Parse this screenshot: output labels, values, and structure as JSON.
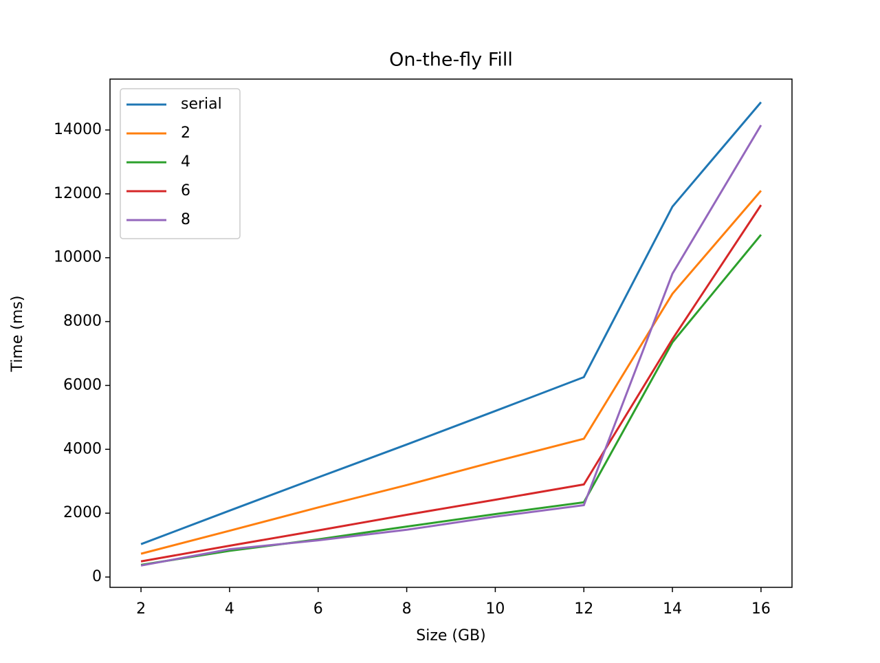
{
  "chart_data": {
    "type": "line",
    "title": "On-the-fly Fill",
    "x_label": "Size (GB)",
    "y_label": "Time (ms)",
    "x": [
      2,
      4,
      6,
      8,
      10,
      12,
      14,
      16
    ],
    "series": [
      {
        "name": "serial",
        "color": "#1f77b4",
        "values": [
          1030,
          2080,
          3120,
          4150,
          5200,
          6260,
          11600,
          14870
        ]
      },
      {
        "name": "2",
        "color": "#ff7f0e",
        "values": [
          730,
          1450,
          2180,
          2880,
          3620,
          4330,
          8870,
          12100
        ]
      },
      {
        "name": "4",
        "color": "#2ca02c",
        "values": [
          380,
          820,
          1180,
          1580,
          1970,
          2340,
          7350,
          10720
        ]
      },
      {
        "name": "6",
        "color": "#d62728",
        "values": [
          490,
          980,
          1460,
          1950,
          2420,
          2900,
          7450,
          11650
        ]
      },
      {
        "name": "8",
        "color": "#9467bd",
        "values": [
          360,
          870,
          1150,
          1480,
          1890,
          2250,
          9500,
          14150
        ]
      }
    ],
    "xlim": [
      1.3,
      16.7
    ],
    "xticks": [
      2,
      4,
      6,
      8,
      10,
      12,
      14,
      16
    ],
    "ylim": [
      -323,
      15594
    ],
    "yticks": [
      0,
      2000,
      4000,
      6000,
      8000,
      10000,
      12000,
      14000
    ],
    "legend": "upper left"
  }
}
